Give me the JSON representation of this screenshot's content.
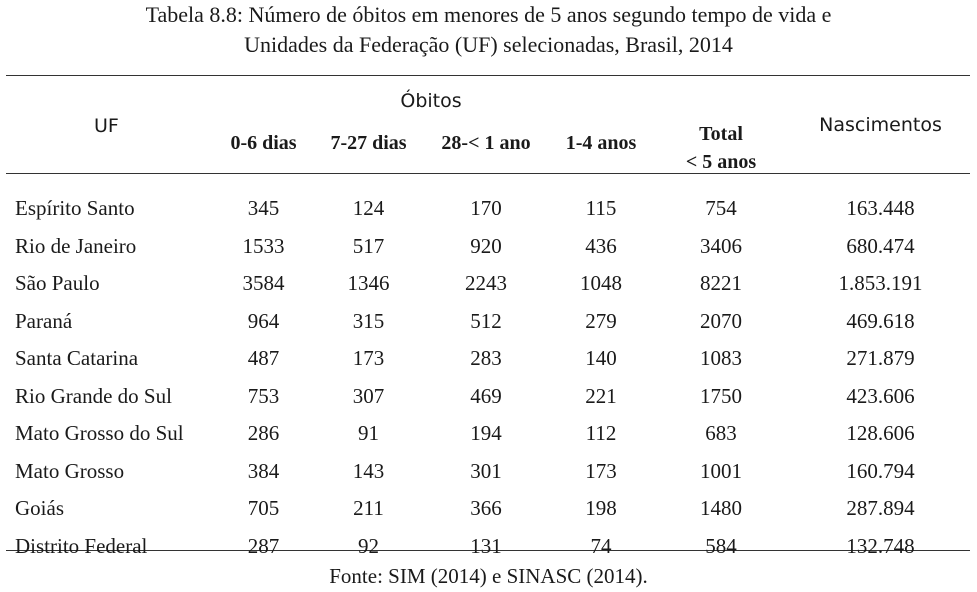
{
  "caption": {
    "line1": "Tabela 8.8: Número de óbitos em menores de 5 anos segundo tempo de vida e",
    "line2": "Unidades da Federação (UF) selecionadas, Brasil, 2014"
  },
  "headers": {
    "uf": "UF",
    "obitos": "Óbitos",
    "col_0_6": "0-6 dias",
    "col_7_27": "7-27 dias",
    "col_28_1": "28-< 1 ano",
    "col_1_4": "1-4 anos",
    "total_line1": "Total",
    "total_line2": "< 5 anos",
    "nascimentos": "Nascimentos"
  },
  "rows": [
    [
      "Espírito Santo",
      "345",
      "124",
      "170",
      "115",
      "754",
      "163.448"
    ],
    [
      "Rio de Janeiro",
      "1533",
      "517",
      "920",
      "436",
      "3406",
      "680.474"
    ],
    [
      "São Paulo",
      "3584",
      "1346",
      "2243",
      "1048",
      "8221",
      "1.853.191"
    ],
    [
      "Paraná",
      "964",
      "315",
      "512",
      "279",
      "2070",
      "469.618"
    ],
    [
      "Santa Catarina",
      "487",
      "173",
      "283",
      "140",
      "1083",
      "271.879"
    ],
    [
      "Rio Grande do Sul",
      "753",
      "307",
      "469",
      "221",
      "1750",
      "423.606"
    ],
    [
      "Mato Grosso do Sul",
      "286",
      "91",
      "194",
      "112",
      "683",
      "128.606"
    ],
    [
      "Mato Grosso",
      "384",
      "143",
      "301",
      "173",
      "1001",
      "160.794"
    ],
    [
      "Goiás",
      "705",
      "211",
      "366",
      "198",
      "1480",
      "287.894"
    ],
    [
      "Distrito Federal",
      "287",
      "92",
      "131",
      "74",
      "584",
      "132.748"
    ]
  ],
  "footer": "Fonte: SIM (2014) e SINASC (2014)."
}
